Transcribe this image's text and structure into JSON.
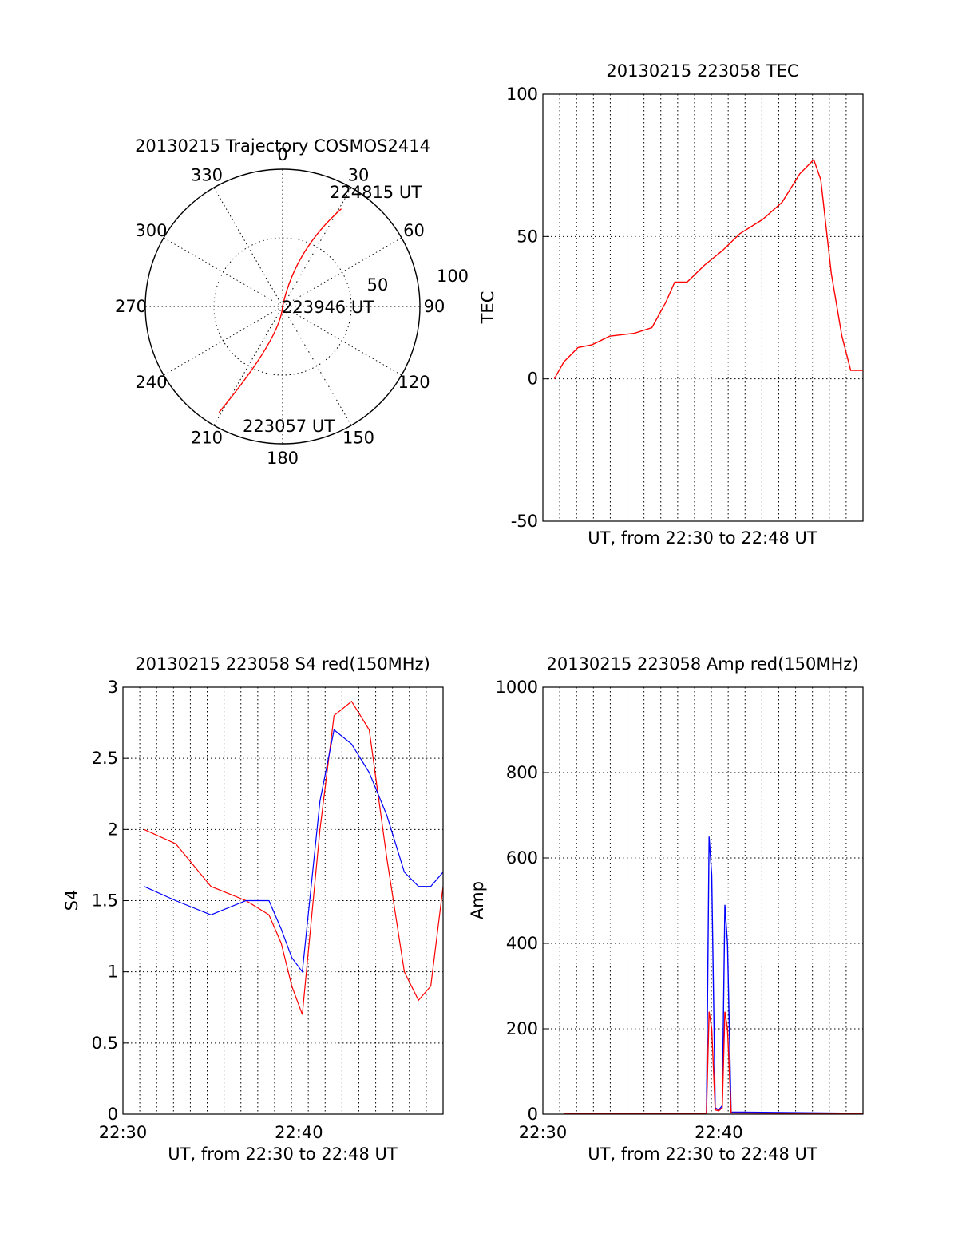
{
  "chart_data": [
    {
      "type": "polar",
      "title": "20130215 Trajectory COSMOS2414",
      "angle_labels": [
        "0",
        "30",
        "60",
        "90",
        "120",
        "150",
        "180",
        "210",
        "240",
        "270",
        "300",
        "330"
      ],
      "radius_labels": [
        "50",
        "100"
      ],
      "series": [
        {
          "color": "#ff0000",
          "points": [
            {
              "time": "223057 UT",
              "azimuth": 211,
              "radius": 90
            },
            {
              "time": "223946 UT",
              "azimuth": 0,
              "radius": 0
            },
            {
              "time": "224815 UT",
              "azimuth": 31,
              "radius": 83
            }
          ]
        }
      ],
      "annotations": [
        "224815 UT",
        "223946 UT",
        "223057 UT"
      ]
    },
    {
      "type": "line",
      "title": "20130215 223058 TEC",
      "xlabel": "UT, from 22:30 to 22:48 UT",
      "ylabel": "TEC",
      "ylim": [
        -50,
        100
      ],
      "yticks": [
        "100",
        "50",
        "0",
        "-50"
      ],
      "xlim": [
        0,
        18.2
      ],
      "series": [
        {
          "color": "#ff0000",
          "x": [
            0.65,
            1.2,
            2,
            2.8,
            3.8,
            5.2,
            6.2,
            7,
            7.5,
            8.2,
            9.2,
            10.2,
            11.2,
            12.5,
            13.6,
            14.6,
            15.4,
            15.8,
            16.4,
            17,
            17.5,
            18.2
          ],
          "y": [
            0,
            6,
            11,
            12,
            15,
            16,
            18,
            27,
            34,
            34,
            40,
            45,
            51,
            56,
            62,
            72,
            77,
            70,
            37,
            15,
            3,
            3
          ]
        }
      ]
    },
    {
      "type": "line",
      "title": "20130215 223058 S4 red(150MHz)",
      "xlabel": "UT, from 22:30 to 22:48 UT",
      "ylabel": "S4",
      "ylim": [
        0,
        3
      ],
      "yticks": [
        "3",
        "2.5",
        "2",
        "1.5",
        "1",
        "0.5",
        "0"
      ],
      "xticks": [
        "22:30",
        "22:40"
      ],
      "xlim": [
        0,
        18.2
      ],
      "series": [
        {
          "color": "#ff0000",
          "x": [
            1.2,
            3,
            5,
            7,
            8.3,
            9,
            9.6,
            10.2,
            11.2,
            12,
            13,
            14,
            15,
            16,
            16.8,
            17.5,
            18.2
          ],
          "y": [
            2.0,
            1.9,
            1.6,
            1.5,
            1.4,
            1.2,
            0.9,
            0.7,
            2.0,
            2.8,
            2.9,
            2.7,
            1.8,
            1.0,
            0.8,
            0.9,
            1.6
          ]
        },
        {
          "color": "#0000ff",
          "x": [
            1.2,
            3,
            5,
            7,
            8.3,
            9,
            9.6,
            10.2,
            11.2,
            12,
            13,
            14,
            15,
            16,
            16.8,
            17.5,
            18.2
          ],
          "y": [
            1.6,
            1.5,
            1.4,
            1.5,
            1.5,
            1.3,
            1.1,
            1.0,
            2.2,
            2.7,
            2.6,
            2.4,
            2.1,
            1.7,
            1.6,
            1.6,
            1.7
          ]
        }
      ]
    },
    {
      "type": "line",
      "title": "20130215 223058 Amp red(150MHz)",
      "xlabel": "UT, from 22:30 to 22:48 UT",
      "ylabel": "Amp",
      "ylim": [
        0,
        1000
      ],
      "yticks": [
        "1000",
        "800",
        "600",
        "400",
        "200",
        "0"
      ],
      "xticks": [
        "22:30",
        "22:40"
      ],
      "xlim": [
        0,
        18.2
      ],
      "series": [
        {
          "color": "#0000ff",
          "x": [
            1.2,
            9.3,
            9.45,
            9.6,
            9.8,
            10,
            10.2,
            10.35,
            10.5,
            10.7,
            18.2
          ],
          "y": [
            2,
            2,
            650,
            560,
            15,
            10,
            20,
            490,
            400,
            5,
            2
          ]
        },
        {
          "color": "#ff0000",
          "x": [
            1.2,
            9.3,
            9.45,
            9.6,
            9.8,
            10,
            10.2,
            10.35,
            10.5,
            10.7,
            18.2
          ],
          "y": [
            1,
            1,
            240,
            200,
            10,
            8,
            15,
            240,
            200,
            3,
            1
          ]
        }
      ]
    }
  ]
}
